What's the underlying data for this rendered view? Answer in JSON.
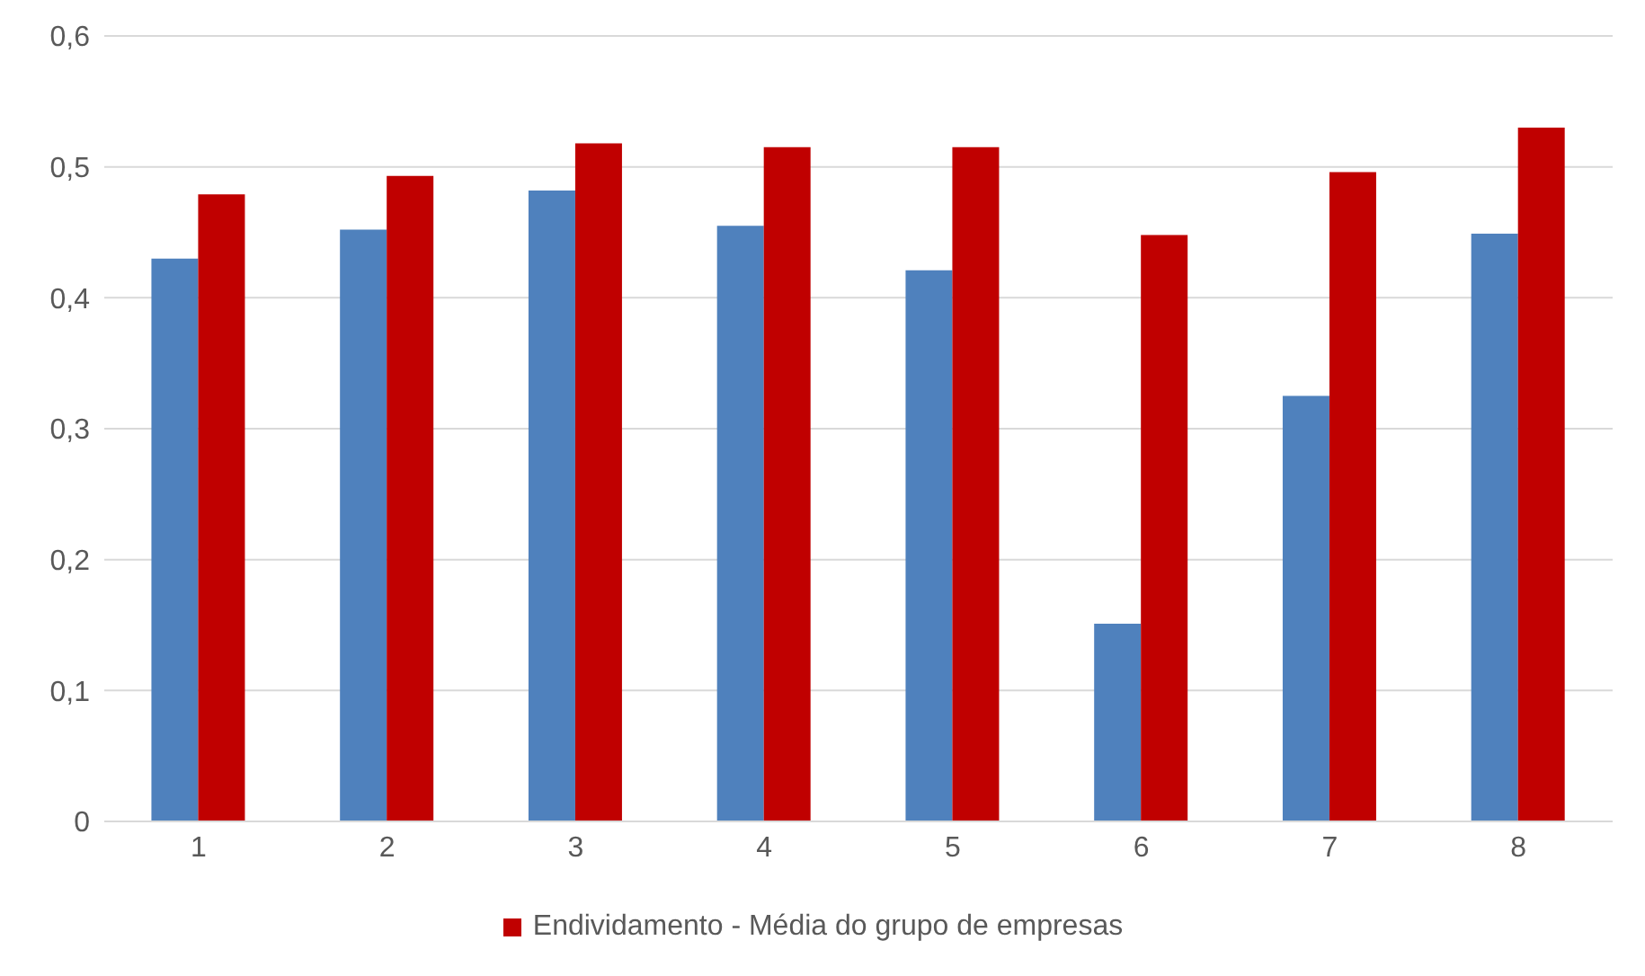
{
  "chart_data": {
    "type": "bar",
    "categories": [
      "1",
      "2",
      "3",
      "4",
      "5",
      "6",
      "7",
      "8"
    ],
    "series": [
      {
        "color": "#4f81bd",
        "values": [
          0.43,
          0.452,
          0.482,
          0.455,
          0.421,
          0.151,
          0.325,
          0.449
        ]
      },
      {
        "name": "Endividamento - Média do grupo de empresas",
        "color": "#c00000",
        "values": [
          0.479,
          0.493,
          0.518,
          0.515,
          0.515,
          0.448,
          0.496,
          0.53
        ]
      }
    ],
    "ylim": [
      0,
      0.6
    ],
    "yticks": [
      {
        "value": 0,
        "label": "0"
      },
      {
        "value": 0.1,
        "label": "0,1"
      },
      {
        "value": 0.2,
        "label": "0,2"
      },
      {
        "value": 0.3,
        "label": "0,3"
      },
      {
        "value": 0.4,
        "label": "0,4"
      },
      {
        "value": 0.5,
        "label": "0,5"
      },
      {
        "value": 0.6,
        "label": "0,6"
      }
    ],
    "grid": "y",
    "legend": "bottom"
  }
}
